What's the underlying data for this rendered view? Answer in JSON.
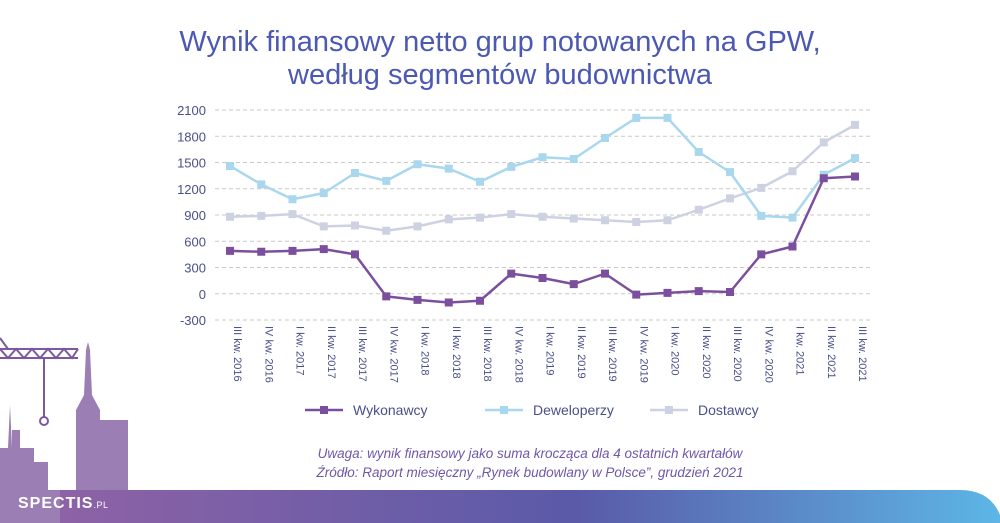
{
  "title_line1": "Wynik finansowy netto grup notowanych na GPW,",
  "title_line2": "według segmentów budownictwa",
  "note_line1": "Uwaga: wynik finansowy jako suma krocząca dla 4 ostatnich kwartałów",
  "note_line2": "Źródło: Raport miesięczny „Rynek budowlany w Polsce”, grudzień 2021",
  "logo_main": "SPECTIS",
  "logo_domain": ".PL",
  "colors": {
    "title": "#4b59b3",
    "wykonawcy": "#7c4f9e",
    "deweloperzy": "#a9d8ee",
    "dostawcy": "#ccd2e2",
    "grid": "#c9c9c9",
    "notes": "#6f57a8",
    "band_start": "#8e62a6",
    "band_mid": "#5a5aa8",
    "band_end": "#5cb6e6"
  },
  "chart_data": {
    "type": "line",
    "ylim": [
      -300,
      2100
    ],
    "yticks": [
      -300,
      0,
      300,
      600,
      900,
      1200,
      1500,
      1800,
      2100
    ],
    "grid": "horizontal dashed",
    "legend_position": "bottom",
    "categories": [
      "III kw. 2016",
      "IV kw. 2016",
      "I kw. 2017",
      "II kw. 2017",
      "III kw. 2017",
      "IV kw. 2017",
      "I kw. 2018",
      "II kw. 2018",
      "III kw. 2018",
      "IV kw. 2018",
      "I kw. 2019",
      "II kw. 2019",
      "III kw. 2019",
      "IV kw. 2019",
      "I kw. 2020",
      "II kw. 2020",
      "III kw. 2020",
      "IV kw. 2020",
      "I kw. 2021",
      "II kw. 2021",
      "III kw. 2021"
    ],
    "series": [
      {
        "name": "Wykonawcy",
        "color_key": "wykonawcy",
        "values": [
          490,
          480,
          490,
          510,
          450,
          -30,
          -70,
          -100,
          -80,
          230,
          180,
          110,
          230,
          -10,
          10,
          30,
          20,
          450,
          540,
          1320,
          1340
        ]
      },
      {
        "name": "Deweloperzy",
        "color_key": "deweloperzy",
        "values": [
          1460,
          1250,
          1080,
          1150,
          1380,
          1290,
          1480,
          1430,
          1280,
          1450,
          1560,
          1540,
          1780,
          2010,
          2010,
          1620,
          1390,
          890,
          870,
          1360,
          1550
        ]
      },
      {
        "name": "Dostawcy",
        "color_key": "dostawcy",
        "values": [
          880,
          890,
          910,
          770,
          780,
          720,
          770,
          850,
          870,
          910,
          880,
          860,
          840,
          820,
          840,
          960,
          1090,
          1210,
          1400,
          1730,
          1930
        ]
      }
    ]
  }
}
